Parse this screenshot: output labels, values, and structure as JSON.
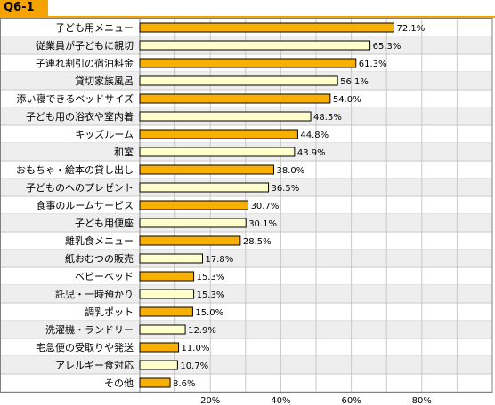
{
  "header": {
    "question_label": "Q6-1"
  },
  "colors": {
    "accent": "#f4a300",
    "bar_primary": "#f7b000",
    "bar_secondary": "#ffffcc",
    "bar_stroke": "#000000",
    "grid": "#c8c8c8",
    "row_alt": "#eeeeee"
  },
  "chart_data": {
    "type": "bar",
    "orientation": "horizontal",
    "categories": [
      "子ども用メニュー",
      "従業員が子どもに親切",
      "子連れ割引の宿泊料金",
      "貸切家族風呂",
      "添い寝できるベッドサイズ",
      "子ども用の浴衣や室内着",
      "キッズルーム",
      "和室",
      "おもちゃ・絵本の貸し出し",
      "子どものへのプレゼント",
      "食事のルームサービス",
      "子ども用便座",
      "離乳食メニュー",
      "紙おむつの販売",
      "ベビーベッド",
      "託児・一時預かり",
      "調乳ポット",
      "洗濯機・ランドリー",
      "宅急便の受取りや発送",
      "アレルギー食対応",
      "その他"
    ],
    "values": [
      72.1,
      65.3,
      61.3,
      56.1,
      54.0,
      48.5,
      44.8,
      43.9,
      38.0,
      36.5,
      30.7,
      30.1,
      28.5,
      17.8,
      15.3,
      15.3,
      15.0,
      12.9,
      11.0,
      10.7,
      8.6
    ],
    "value_labels": [
      "72.1%",
      "65.3%",
      "61.3%",
      "56.1%",
      "54.0%",
      "48.5%",
      "44.8%",
      "43.9%",
      "38.0%",
      "36.5%",
      "30.7%",
      "30.1%",
      "28.5%",
      "17.8%",
      "15.3%",
      "15.3%",
      "15.0%",
      "12.9%",
      "11.0%",
      "10.7%",
      "8.6%"
    ],
    "highlight_pattern": "alternating rows: orange fill on odd rows, pale yellow on even rows",
    "xlim": [
      0,
      100
    ],
    "x_ticks": [
      20,
      40,
      60,
      80
    ],
    "x_tick_labels": [
      "20%",
      "40%",
      "60%",
      "80%"
    ],
    "grid": true,
    "title": "",
    "xlabel": "",
    "ylabel": ""
  }
}
